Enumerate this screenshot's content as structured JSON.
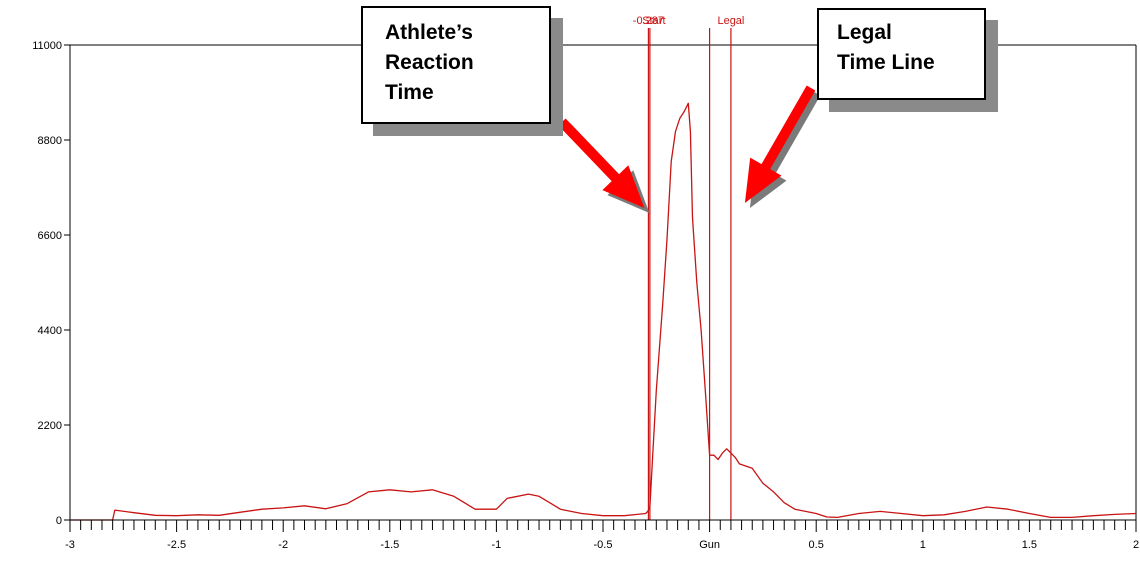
{
  "chart_data": {
    "type": "line",
    "title": "",
    "xlabel": "",
    "ylabel": "",
    "xlim": [
      -3,
      2
    ],
    "ylim": [
      0,
      11000
    ],
    "y_ticks": [
      0,
      2200,
      4400,
      6600,
      8800,
      11000
    ],
    "y_tick_labels": [
      "0",
      "2200",
      "4400",
      "6600",
      "8800",
      "11000"
    ],
    "x_ticks": [
      -3,
      -2.5,
      -2,
      -1.5,
      -1,
      -0.5,
      0,
      0.5,
      1,
      1.5,
      2
    ],
    "x_tick_labels": [
      "-3",
      "-2.5",
      "-2",
      "-1.5",
      "-1",
      "-0.5",
      "Gun",
      "0.5",
      "1",
      "1.5",
      "2"
    ],
    "line_color": "#c81414",
    "series": [
      {
        "x": [
          -3.0,
          -2.8,
          -2.79,
          -2.7,
          -2.6,
          -2.5,
          -2.4,
          -2.3,
          -2.2,
          -2.1,
          -2.0,
          -1.9,
          -1.8,
          -1.7,
          -1.6,
          -1.5,
          -1.4,
          -1.3,
          -1.2,
          -1.1,
          -1.0,
          -0.95,
          -0.9,
          -0.85,
          -0.8,
          -0.75,
          -0.7,
          -0.6,
          -0.5,
          -0.4,
          -0.3,
          -0.29,
          -0.28,
          -0.27,
          -0.25,
          -0.22,
          -0.2,
          -0.18,
          -0.16,
          -0.14,
          -0.12,
          -0.1,
          -0.09,
          -0.08,
          -0.06,
          -0.04,
          -0.02,
          0.0,
          0.02,
          0.04,
          0.06,
          0.08,
          0.1,
          0.12,
          0.14,
          0.2,
          0.25,
          0.3,
          0.35,
          0.4,
          0.5,
          0.55,
          0.6,
          0.7,
          0.8,
          0.9,
          1.0,
          1.1,
          1.2,
          1.3,
          1.4,
          1.5,
          1.6,
          1.7,
          1.8,
          1.9,
          2.0
        ],
        "y": [
          0,
          0,
          230,
          170,
          110,
          100,
          120,
          110,
          180,
          250,
          280,
          330,
          260,
          380,
          650,
          700,
          650,
          700,
          550,
          250,
          250,
          500,
          550,
          600,
          550,
          400,
          250,
          150,
          100,
          100,
          150,
          200,
          300,
          1200,
          3000,
          5000,
          6500,
          8300,
          9000,
          9300,
          9450,
          9650,
          9000,
          7000,
          5500,
          4400,
          3000,
          1500,
          1500,
          1400,
          1550,
          1650,
          1550,
          1450,
          1300,
          1200,
          850,
          650,
          400,
          250,
          150,
          70,
          60,
          150,
          200,
          150,
          100,
          120,
          200,
          300,
          250,
          150,
          60,
          60,
          100,
          130,
          150
        ]
      }
    ],
    "vertical_lines": [
      {
        "x": -0.287,
        "label": "-0.287"
      },
      {
        "x": -0.28,
        "label": "Start"
      },
      {
        "x": 0.0,
        "label": ""
      },
      {
        "x": 0.1,
        "label": "Legal"
      }
    ],
    "annotations": [
      {
        "lines": [
          "Athlete’s",
          "Reaction",
          "Time"
        ],
        "points_to_x": -0.287,
        "color": "#ff0000"
      },
      {
        "lines": [
          "Legal",
          "Time Line"
        ],
        "points_to_x": 0.1,
        "color": "#ff0000"
      }
    ]
  }
}
